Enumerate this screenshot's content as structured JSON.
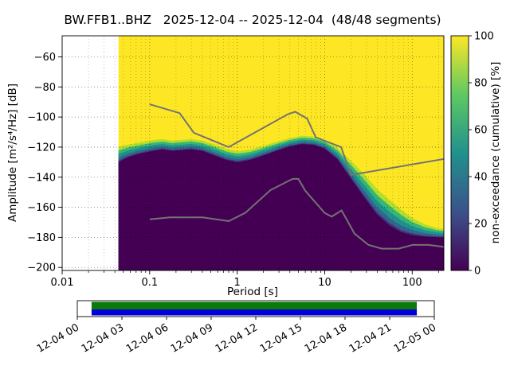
{
  "chart_data": {
    "type": "heatmap",
    "title": "BW.FFB1..BHZ   2025-12-04 -- 2025-12-04  (48/48 segments)",
    "xlabel": "Period [s]",
    "ylabel": "Amplitude [m²/s⁴/Hz] [dB]",
    "xscale": "log",
    "xlim": [
      0.01,
      230
    ],
    "ylim": [
      -202,
      -46
    ],
    "grid": true,
    "xtick_values": [
      0.01,
      0.1,
      1,
      10,
      100
    ],
    "xtick_labels": [
      "0.01",
      "0.1",
      "1",
      "10",
      "100"
    ],
    "ytick_values": [
      -200,
      -180,
      -160,
      -140,
      -120,
      -100,
      -80,
      -60
    ],
    "colorbar": {
      "label": "non-exceedance (cumulative) [%]",
      "tick_values": [
        0,
        20,
        40,
        60,
        80,
        100
      ],
      "colormap": "viridis",
      "stops": [
        "#440154",
        "#3b528b",
        "#21918c",
        "#5ec962",
        "#fde725"
      ]
    },
    "distribution": {
      "fill_100pct": "#fde725",
      "fill_0pct": "#440154",
      "periods_s": [
        0.044,
        0.055,
        0.07,
        0.09,
        0.11,
        0.14,
        0.18,
        0.23,
        0.3,
        0.4,
        0.55,
        0.75,
        1.0,
        1.4,
        2.0,
        2.8,
        4.0,
        5.5,
        7.5,
        10,
        14,
        20,
        28,
        40,
        55,
        75,
        100,
        140,
        200,
        230
      ],
      "q0_db": [
        -130,
        -127,
        -125,
        -123.5,
        -122.5,
        -121.5,
        -122.5,
        -122,
        -121.5,
        -122.5,
        -125.5,
        -128.5,
        -130,
        -128.5,
        -125.5,
        -122.5,
        -119.5,
        -118,
        -118.5,
        -121,
        -128,
        -141,
        -153,
        -165,
        -172,
        -176.5,
        -178.5,
        -179.5,
        -180,
        -180
      ],
      "q100_db": [
        -118,
        -117,
        -116,
        -115,
        -114,
        -113.5,
        -114.5,
        -114,
        -113.5,
        -114.5,
        -117,
        -120,
        -121.5,
        -120.5,
        -118,
        -115.5,
        -113,
        -111.5,
        -112,
        -114,
        -119,
        -127,
        -135,
        -145,
        -152,
        -159,
        -165,
        -170,
        -173,
        -173.5
      ],
      "bands": [
        {
          "f": 0.85,
          "color": "#b5de2b"
        },
        {
          "f": 0.65,
          "color": "#35b779"
        },
        {
          "f": 0.45,
          "color": "#21918c"
        },
        {
          "f": 0.25,
          "color": "#31688e"
        },
        {
          "f": 0.08,
          "color": "#46327e"
        },
        {
          "f": 0.0,
          "color": "#440154"
        }
      ]
    },
    "noise_models": {
      "color": "#737373",
      "nhnm": {
        "periods_s": [
          0.1,
          0.22,
          0.32,
          0.8,
          3.8,
          4.6,
          6.3,
          7.9,
          15.4,
          20.0,
          354.8
        ],
        "db": [
          -91.5,
          -97.4,
          -110.5,
          -120.0,
          -98.1,
          -96.5,
          -101.0,
          -113.5,
          -120.0,
          -138.5,
          -126.0
        ]
      },
      "nlnm": {
        "periods_s": [
          0.1,
          0.17,
          0.4,
          0.8,
          1.24,
          2.4,
          4.3,
          5.0,
          6.0,
          10.0,
          12.0,
          15.6,
          21.9,
          31.6,
          45.0,
          70.0,
          101.0,
          154.0,
          328.0
        ],
        "db": [
          -168.0,
          -166.7,
          -166.7,
          -169.2,
          -163.7,
          -148.6,
          -141.1,
          -141.1,
          -149.0,
          -163.8,
          -166.2,
          -162.1,
          -177.5,
          -185.0,
          -187.5,
          -187.5,
          -185.0,
          -185.0,
          -187.5
        ]
      }
    }
  },
  "timeline": {
    "tick_labels": [
      "12-04 00",
      "12-04 03",
      "12-04 06",
      "12-04 09",
      "12-04 12",
      "12-04 15",
      "12-04 18",
      "12-04 21",
      "12-05 00"
    ],
    "coverage_start_frac": 0.04,
    "coverage_end_frac": 0.951,
    "green_color": "#0a7a0a",
    "blue_color": "#0000d6"
  }
}
